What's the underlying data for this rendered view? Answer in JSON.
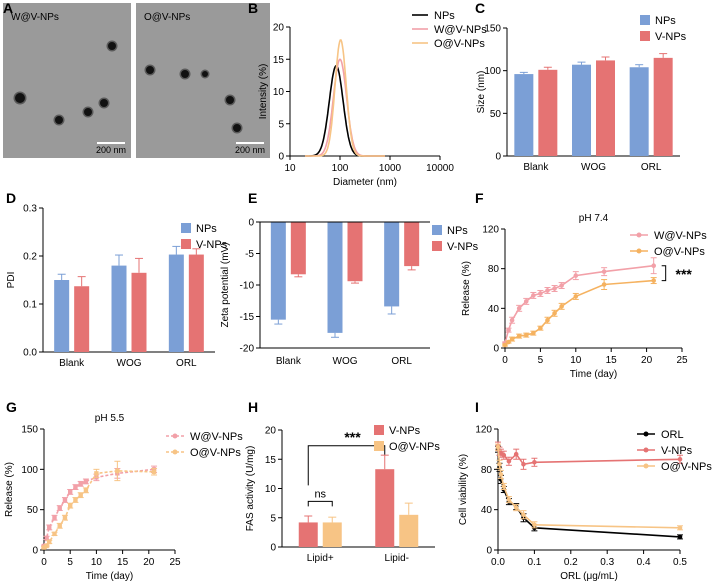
{
  "colors": {
    "blue": "#7b9fd6",
    "red": "#e57373",
    "black": "#000000",
    "pink": "#f2a0a8",
    "orange": "#f7c485",
    "orange_dark": "#f5b260",
    "tem_bg": "#9a9a9a"
  },
  "panel_letters": [
    "A",
    "B",
    "C",
    "D",
    "E",
    "F",
    "G",
    "H",
    "I"
  ],
  "chart_data": [
    {
      "panel": "A",
      "type": "image",
      "images": [
        {
          "label": "W@V-NPs",
          "scalebar": "200 nm"
        },
        {
          "label": "O@V-NPs",
          "scalebar": "200 nm"
        }
      ]
    },
    {
      "panel": "B",
      "type": "line",
      "xscale": "log",
      "xlabel": "Diameter (nm)",
      "ylabel": "Intensity (%)",
      "xlim": [
        10,
        10000
      ],
      "ylim": [
        0,
        20
      ],
      "xticks": [
        10,
        100,
        1000,
        10000
      ],
      "yticks": [
        0,
        5,
        10,
        15,
        20
      ],
      "legend_position": "top-right",
      "series": [
        {
          "name": "NPs",
          "color": "#000000",
          "mean": 84,
          "sigma": 0.21,
          "peak": 14.0
        },
        {
          "name": "W@V-NPs",
          "color": "#f2a0a8",
          "mean": 100,
          "sigma": 0.2,
          "peak": 15.0
        },
        {
          "name": "O@V-NPs",
          "color": "#f7c485",
          "mean": 103,
          "sigma": 0.17,
          "peak": 18.0
        }
      ]
    },
    {
      "panel": "C",
      "type": "bar",
      "ylabel": "Size (nm)",
      "ylim": [
        0,
        150
      ],
      "yticks": [
        0,
        50,
        100,
        150
      ],
      "categories": [
        "Blank",
        "WOG",
        "ORL"
      ],
      "legend_position": "top-right",
      "series": [
        {
          "name": "NPs",
          "color": "#7b9fd6",
          "values": [
            96,
            107,
            104
          ],
          "errors": [
            2,
            3,
            3
          ]
        },
        {
          "name": "V-NPs",
          "color": "#e57373",
          "values": [
            101,
            112,
            115
          ],
          "errors": [
            3,
            4,
            5
          ]
        }
      ]
    },
    {
      "panel": "D",
      "type": "bar",
      "ylabel": "PDI",
      "ylim": [
        0,
        0.3
      ],
      "yticks": [
        0.0,
        0.1,
        0.2,
        0.3
      ],
      "categories": [
        "Blank",
        "WOG",
        "ORL"
      ],
      "legend_position": "top-right",
      "series": [
        {
          "name": "NPs",
          "color": "#7b9fd6",
          "values": [
            0.15,
            0.18,
            0.203
          ],
          "errors": [
            0.012,
            0.022,
            0.017
          ]
        },
        {
          "name": "V-NPs",
          "color": "#e57373",
          "values": [
            0.137,
            0.165,
            0.203
          ],
          "errors": [
            0.02,
            0.03,
            0.012
          ]
        }
      ]
    },
    {
      "panel": "E",
      "type": "bar",
      "ylabel": "Zeta potential (mV)",
      "ylim": [
        -20,
        0
      ],
      "yticks": [
        -20,
        -15,
        -10,
        -5,
        0
      ],
      "categories": [
        "Blank",
        "WOG",
        "ORL"
      ],
      "legend_position": "top-right",
      "series": [
        {
          "name": "NPs",
          "color": "#7b9fd6",
          "values": [
            -15.5,
            -17.6,
            -13.4
          ],
          "errors": [
            0.7,
            0.7,
            1.2
          ]
        },
        {
          "name": "V-NPs",
          "color": "#e57373",
          "values": [
            -8.3,
            -9.4,
            -7.0
          ],
          "errors": [
            0.4,
            0.3,
            0.6
          ]
        }
      ]
    },
    {
      "panel": "F",
      "type": "line",
      "title": "pH 7.4",
      "xlabel": "Time (day)",
      "ylabel": "Release (%)",
      "xlim": [
        0,
        25
      ],
      "ylim": [
        0,
        120
      ],
      "xticks": [
        0,
        5,
        10,
        15,
        20,
        25
      ],
      "yticks": [
        0,
        40,
        80,
        120
      ],
      "legend_position": "top-right",
      "annotation": "***",
      "series": [
        {
          "name": "W@V-NPs",
          "color": "#f2a0a8",
          "x": [
            0,
            0.5,
            1,
            2,
            3,
            4,
            5,
            6,
            7,
            8,
            10,
            14,
            21
          ],
          "y": [
            5,
            18,
            28,
            40,
            47,
            53,
            55,
            58,
            60,
            63,
            73,
            77,
            83
          ],
          "err": [
            1,
            2,
            3,
            3,
            3,
            3,
            3,
            3,
            3,
            3,
            4,
            4,
            8
          ]
        },
        {
          "name": "O@V-NPs",
          "color": "#f5b260",
          "x": [
            0,
            0.5,
            1,
            2,
            3,
            4,
            5,
            6,
            7,
            8,
            10,
            14,
            21
          ],
          "y": [
            3,
            6,
            9,
            12,
            13,
            15,
            20,
            28,
            35,
            42,
            52,
            64,
            68
          ],
          "err": [
            1,
            1,
            2,
            2,
            2,
            2,
            2,
            3,
            3,
            3,
            3,
            5,
            3
          ]
        }
      ]
    },
    {
      "panel": "G",
      "type": "line",
      "title": "pH 5.5",
      "linestyle": "dashed",
      "xlabel": "Time (day)",
      "ylabel": "Release (%)",
      "xlim": [
        0,
        25
      ],
      "ylim": [
        0,
        150
      ],
      "xticks": [
        0,
        5,
        10,
        15,
        20,
        25
      ],
      "yticks": [
        0,
        50,
        100,
        150
      ],
      "legend_position": "top-right",
      "series": [
        {
          "name": "W@V-NPs",
          "color": "#f2a0a8",
          "x": [
            0,
            0.5,
            1,
            2,
            3,
            4,
            5,
            6,
            7,
            8,
            10,
            14,
            21
          ],
          "y": [
            5,
            15,
            28,
            40,
            52,
            62,
            72,
            78,
            82,
            85,
            90,
            95,
            100
          ],
          "err": [
            1,
            2,
            3,
            3,
            3,
            3,
            3,
            3,
            3,
            3,
            4,
            6,
            4
          ]
        },
        {
          "name": "O@V-NPs",
          "color": "#f7c485",
          "x": [
            0,
            0.5,
            1,
            2,
            3,
            4,
            5,
            6,
            7,
            8,
            10,
            14,
            21
          ],
          "y": [
            3,
            5,
            10,
            20,
            30,
            40,
            55,
            62,
            68,
            74,
            95,
            98,
            97
          ],
          "err": [
            1,
            1,
            2,
            2,
            3,
            3,
            3,
            3,
            3,
            3,
            5,
            12,
            4
          ]
        }
      ]
    },
    {
      "panel": "H",
      "type": "bar",
      "ylabel": "FAS activity (U/mg)",
      "ylim": [
        0,
        20
      ],
      "yticks": [
        0,
        5,
        10,
        15,
        20
      ],
      "categories": [
        "Lipid+",
        "Lipid-"
      ],
      "legend_position": "top-right",
      "significance": [
        {
          "label": "ns"
        },
        {
          "label": "***"
        }
      ],
      "series": [
        {
          "name": "V-NPs",
          "color": "#e57373",
          "values": [
            4.2,
            13.3
          ],
          "errors": [
            1.1,
            2.4
          ]
        },
        {
          "name": "O@V-NPs",
          "color": "#f7c485",
          "values": [
            4.2,
            5.5
          ],
          "errors": [
            0.9,
            2.0
          ]
        }
      ]
    },
    {
      "panel": "I",
      "type": "line",
      "xlabel": "ORL (μg/mL)",
      "ylabel": "Cell viability (%)",
      "xlim": [
        0,
        0.5
      ],
      "ylim": [
        0,
        120
      ],
      "xticks": [
        0.0,
        0.1,
        0.2,
        0.3,
        0.4,
        0.5
      ],
      "yticks": [
        0,
        40,
        80,
        120
      ],
      "legend_position": "top-right",
      "series": [
        {
          "name": "ORL",
          "color": "#000000",
          "x": [
            0,
            0.004,
            0.008,
            0.016,
            0.03,
            0.05,
            0.07,
            0.1,
            0.5
          ],
          "y": [
            100,
            82,
            70,
            60,
            48,
            43,
            32,
            22,
            13
          ],
          "err": [
            3,
            4,
            4,
            3,
            3,
            3,
            4,
            3,
            2
          ]
        },
        {
          "name": "V-NPs",
          "color": "#e57373",
          "x": [
            0,
            0.004,
            0.008,
            0.016,
            0.03,
            0.05,
            0.07,
            0.1,
            0.5
          ],
          "y": [
            103,
            98,
            96,
            94,
            88,
            95,
            85,
            87,
            90
          ],
          "err": [
            4,
            4,
            4,
            4,
            4,
            5,
            5,
            4,
            4
          ]
        },
        {
          "name": "O@V-NPs",
          "color": "#f7c485",
          "x": [
            0,
            0.004,
            0.008,
            0.016,
            0.03,
            0.05,
            0.07,
            0.1,
            0.5
          ],
          "y": [
            102,
            85,
            75,
            63,
            50,
            42,
            35,
            25,
            22
          ],
          "err": [
            3,
            4,
            4,
            3,
            3,
            3,
            4,
            3,
            2
          ]
        }
      ]
    }
  ]
}
